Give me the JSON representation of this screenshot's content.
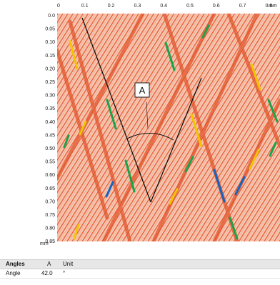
{
  "viewer": {
    "x_unit": "mm",
    "y_unit": "mm",
    "x_ticks": [
      "0",
      "0.1",
      "0.2",
      "0.3",
      "0.4",
      "0.5",
      "0.6",
      "0.7",
      "0.8"
    ],
    "y_ticks": [
      "0.0",
      "0.05",
      "0.10",
      "0.15",
      "0.20",
      "0.25",
      "0.30",
      "0.35",
      "0.40",
      "0.45",
      "0.50",
      "0.55",
      "0.60",
      "0.65",
      "0.70",
      "0.75",
      "0.80",
      "0.85"
    ],
    "angle_marker_label": "A",
    "colors": {
      "background": "#f6c7b4",
      "stripe": "#e6643a",
      "stripe_light": "#f3a98c",
      "highlight_yellow": "#f2c500",
      "highlight_green": "#1aa34a",
      "highlight_blue": "#1565c0",
      "measurement_line": "#111111"
    }
  },
  "table": {
    "headers": [
      "Angles",
      "A",
      "Unit"
    ],
    "rows": [
      {
        "name": "Angle",
        "value": "42.0",
        "unit": "°"
      }
    ]
  }
}
